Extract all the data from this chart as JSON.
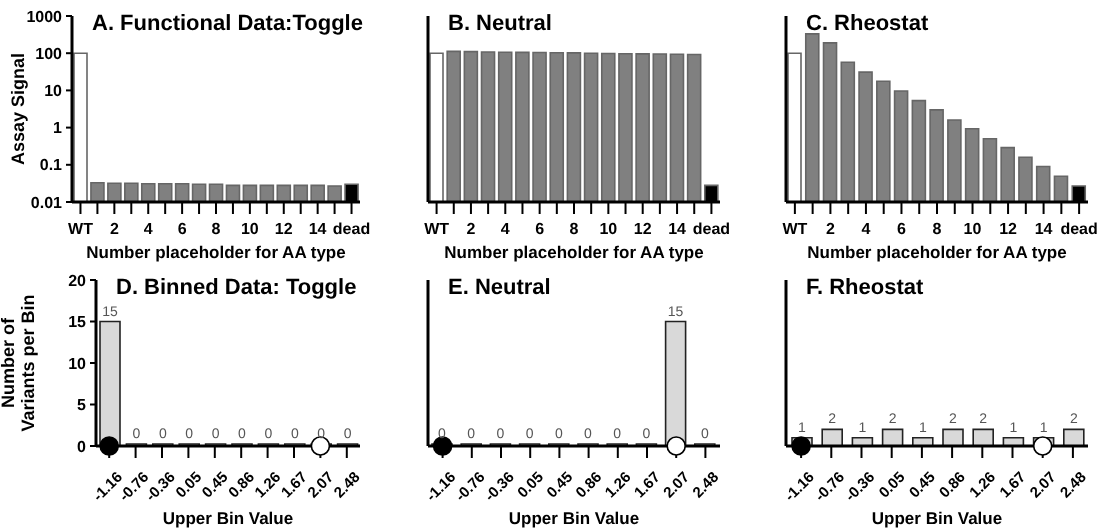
{
  "chart_data": [
    {
      "type": "bar",
      "title": "A. Functional Data:Toggle",
      "xlabel": "Number placeholder for AA type",
      "ylabel": "Assay Signal",
      "log": "y",
      "ylim": [
        0.01,
        1000
      ],
      "yticks": [
        0.01,
        0.1,
        1,
        10,
        100,
        1000
      ],
      "grid": false,
      "legend": false,
      "categories": [
        "WT",
        null,
        "2",
        null,
        "4",
        null,
        "6",
        null,
        "8",
        null,
        "10",
        null,
        "12",
        null,
        "14",
        null,
        "dead"
      ],
      "values": [
        100,
        0.033,
        0.032,
        0.032,
        0.031,
        0.031,
        0.031,
        0.03,
        0.03,
        0.028,
        0.028,
        0.028,
        0.028,
        0.028,
        0.028,
        0.027,
        0.03
      ],
      "colors": [
        "#ffffff",
        "#808080",
        "#808080",
        "#808080",
        "#808080",
        "#808080",
        "#808080",
        "#808080",
        "#808080",
        "#808080",
        "#808080",
        "#808080",
        "#808080",
        "#808080",
        "#808080",
        "#808080",
        "#000000"
      ]
    },
    {
      "type": "bar",
      "title": "B. Neutral",
      "xlabel": "Number placeholder for AA type",
      "log": "y",
      "ylim": [
        0.01,
        1000
      ],
      "yticks": [
        0.01,
        0.1,
        1,
        10,
        100,
        1000
      ],
      "tick_labels": "x",
      "grid": false,
      "legend": false,
      "categories": [
        "WT",
        null,
        "2",
        null,
        "4",
        null,
        "6",
        null,
        "8",
        null,
        "10",
        null,
        "12",
        null,
        "14",
        null,
        "dead"
      ],
      "values": [
        100,
        112,
        110,
        108,
        106,
        105,
        104,
        103,
        102,
        100,
        98,
        97,
        96,
        95,
        94,
        92,
        0.028
      ],
      "colors": [
        "#ffffff",
        "#808080",
        "#808080",
        "#808080",
        "#808080",
        "#808080",
        "#808080",
        "#808080",
        "#808080",
        "#808080",
        "#808080",
        "#808080",
        "#808080",
        "#808080",
        "#808080",
        "#808080",
        "#000000"
      ]
    },
    {
      "type": "bar",
      "title": "C. Rheostat",
      "xlabel": "Number placeholder for AA type",
      "log": "y",
      "ylim": [
        0.01,
        1000
      ],
      "yticks": [
        0.01,
        0.1,
        1,
        10,
        100,
        1000
      ],
      "tick_labels": "x",
      "grid": false,
      "legend": false,
      "categories": [
        "WT",
        null,
        "2",
        null,
        "4",
        null,
        "6",
        null,
        "8",
        null,
        "10",
        null,
        "12",
        null,
        "14",
        null,
        "dead"
      ],
      "values": [
        100,
        330,
        190,
        57,
        31,
        17.6,
        9.6,
        5.3,
        3,
        1.6,
        0.93,
        0.5,
        0.29,
        0.16,
        0.09,
        0.049,
        0.027
      ],
      "colors": [
        "#ffffff",
        "#808080",
        "#808080",
        "#808080",
        "#808080",
        "#808080",
        "#808080",
        "#808080",
        "#808080",
        "#808080",
        "#808080",
        "#808080",
        "#808080",
        "#808080",
        "#808080",
        "#808080",
        "#000000"
      ]
    },
    {
      "type": "bar",
      "title": "D. Binned Data: Toggle",
      "xlabel": "Upper Bin Value",
      "ylabel": "Number of\nVariants per Bin",
      "ylim": [
        0,
        20
      ],
      "yticks": [
        0,
        5,
        10,
        15,
        20
      ],
      "grid": false,
      "legend": false,
      "marker": "circle",
      "categories": [
        "-1.16",
        "-0.76",
        "-0.36",
        "0.05",
        "0.45",
        "0.86",
        "1.26",
        "1.67",
        "2.07",
        "2.48"
      ],
      "series": [
        {
          "color": "#d9d9d9",
          "values": [
            15,
            0,
            0,
            0,
            0,
            0,
            0,
            0,
            0,
            0
          ],
          "value_labels": [
            "15",
            "0",
            "0",
            "0",
            "0",
            "0",
            "0",
            "0",
            "0",
            "0"
          ]
        },
        {
          "type": "scatter",
          "color": "#000000",
          "x": [
            "-1.16"
          ],
          "values": [
            0
          ]
        },
        {
          "type": "scatter",
          "color": "#ffffff",
          "x": [
            "2.07"
          ],
          "values": [
            0
          ]
        }
      ]
    },
    {
      "type": "bar",
      "title": "E. Neutral",
      "xlabel": "Upper Bin Value",
      "ylim": [
        0,
        20
      ],
      "yticks": [
        0,
        5,
        10,
        15,
        20
      ],
      "tick_labels": "x",
      "grid": false,
      "legend": false,
      "marker": "circle",
      "categories": [
        "-1.16",
        "-0.76",
        "-0.36",
        "0.05",
        "0.45",
        "0.86",
        "1.26",
        "1.67",
        "2.07",
        "2.48"
      ],
      "series": [
        {
          "color": "#d9d9d9",
          "values": [
            0,
            0,
            0,
            0,
            0,
            0,
            0,
            0,
            15,
            0
          ],
          "value_labels": [
            "0",
            "0",
            "0",
            "0",
            "0",
            "0",
            "0",
            "0",
            "15",
            "0"
          ]
        },
        {
          "type": "scatter",
          "color": "#000000",
          "x": [
            "-1.16"
          ],
          "values": [
            0
          ]
        },
        {
          "type": "scatter",
          "color": "#ffffff",
          "x": [
            "2.07"
          ],
          "values": [
            0
          ]
        }
      ]
    },
    {
      "type": "bar",
      "title": "F. Rheostat",
      "xlabel": "Upper Bin Value",
      "ylim": [
        0,
        20
      ],
      "yticks": [
        0,
        5,
        10,
        15,
        20
      ],
      "tick_labels": "x",
      "grid": false,
      "legend": false,
      "marker": "circle",
      "categories": [
        "-1.16",
        "-0.76",
        "-0.36",
        "0.05",
        "0.45",
        "0.86",
        "1.26",
        "1.67",
        "2.07",
        "2.48"
      ],
      "series": [
        {
          "color": "#d9d9d9",
          "values": [
            1,
            2,
            1,
            2,
            1,
            2,
            2,
            1,
            1,
            2
          ],
          "value_labels": [
            "1",
            "2",
            "1",
            "2",
            "1",
            "2",
            "2",
            "1",
            "1",
            "2"
          ]
        },
        {
          "type": "scatter",
          "color": "#000000",
          "x": [
            "-1.16"
          ],
          "values": [
            0
          ]
        },
        {
          "type": "scatter",
          "color": "#ffffff",
          "x": [
            "2.07"
          ],
          "values": [
            0
          ]
        }
      ]
    }
  ]
}
